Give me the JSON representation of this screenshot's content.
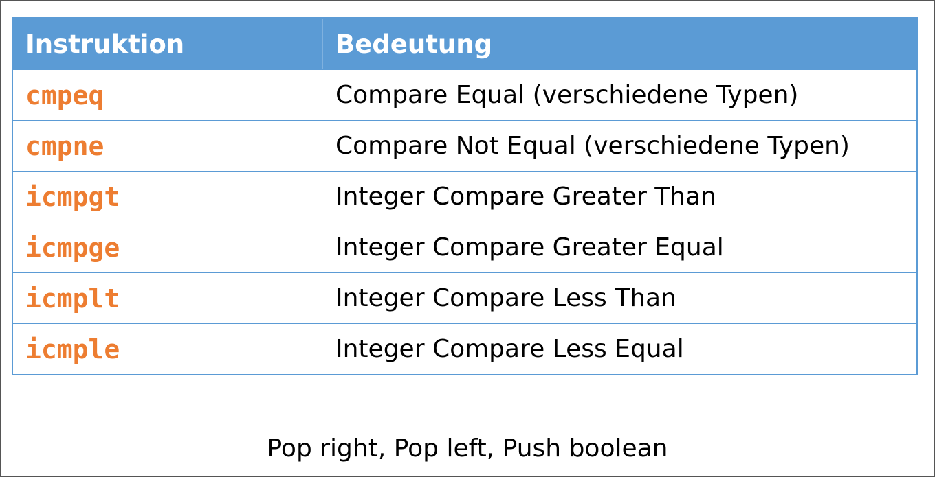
{
  "table": {
    "headers": [
      "Instruktion",
      "Bedeutung"
    ],
    "rows": [
      {
        "instruction": "cmpeq",
        "meaning": "Compare Equal (verschiedene Typen)"
      },
      {
        "instruction": "cmpne",
        "meaning": "Compare Not Equal (verschiedene Typen)"
      },
      {
        "instruction": "icmpgt",
        "meaning": "Integer Compare Greater Than"
      },
      {
        "instruction": "icmpge",
        "meaning": "Integer Compare Greater Equal"
      },
      {
        "instruction": "icmplt",
        "meaning": "Integer Compare Less Than"
      },
      {
        "instruction": "icmple",
        "meaning": "Integer Compare Less Equal"
      }
    ]
  },
  "footnote": "Pop right, Pop left, Push boolean",
  "colors": {
    "header_bg": "#5b9bd5",
    "instruction_text": "#ed7d31",
    "border": "#5b9bd5"
  }
}
